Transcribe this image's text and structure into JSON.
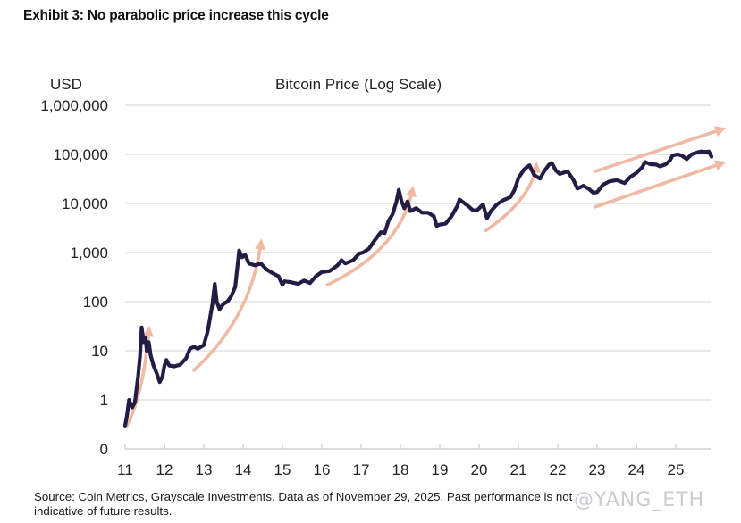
{
  "header": {
    "exhibit_title": "Exhibit 3: No parabolic price increase this cycle"
  },
  "footer": {
    "source_line1": "Source: Coin Metrics, Grayscale Investments. Data as of November 29, 2025. Past performance is not",
    "source_line2": "indicative of future results.",
    "watermark": "@YANG_ETH"
  },
  "colors": {
    "price_line": "#231d45",
    "arrow": "#efb9a3",
    "gridline": "#e2e2e2"
  },
  "chart_data": {
    "type": "line",
    "title": "Bitcoin Price (Log Scale)",
    "ylabel": "USD",
    "xlabel": "",
    "yscale": "log",
    "ylim": [
      0.1,
      1000000
    ],
    "xlim": [
      2011,
      2026.2
    ],
    "grid": true,
    "y_ticks": [
      {
        "value": 1000000,
        "label": "1,000,000"
      },
      {
        "value": 100000,
        "label": "100,000"
      },
      {
        "value": 10000,
        "label": "10,000"
      },
      {
        "value": 1000,
        "label": "1,000"
      },
      {
        "value": 100,
        "label": "100"
      },
      {
        "value": 10,
        "label": "10"
      },
      {
        "value": 1,
        "label": "1"
      },
      {
        "value": 0.1,
        "label": "0"
      }
    ],
    "x_ticks": [
      {
        "value": 2011,
        "label": "11"
      },
      {
        "value": 2012,
        "label": "12"
      },
      {
        "value": 2013,
        "label": "13"
      },
      {
        "value": 2014,
        "label": "14"
      },
      {
        "value": 2015,
        "label": "15"
      },
      {
        "value": 2016,
        "label": "16"
      },
      {
        "value": 2017,
        "label": "17"
      },
      {
        "value": 2018,
        "label": "18"
      },
      {
        "value": 2019,
        "label": "19"
      },
      {
        "value": 2020,
        "label": "20"
      },
      {
        "value": 2021,
        "label": "21"
      },
      {
        "value": 2022,
        "label": "22"
      },
      {
        "value": 2023,
        "label": "23"
      },
      {
        "value": 2024,
        "label": "24"
      },
      {
        "value": 2025,
        "label": "25"
      }
    ],
    "series": [
      {
        "name": "Bitcoin Price (USD)",
        "points": [
          [
            2011.0,
            0.3
          ],
          [
            2011.05,
            0.5
          ],
          [
            2011.1,
            1.0
          ],
          [
            2011.18,
            0.7
          ],
          [
            2011.25,
            0.9
          ],
          [
            2011.33,
            3.0
          ],
          [
            2011.38,
            8
          ],
          [
            2011.42,
            30
          ],
          [
            2011.47,
            15
          ],
          [
            2011.52,
            18
          ],
          [
            2011.55,
            10
          ],
          [
            2011.6,
            15
          ],
          [
            2011.65,
            8
          ],
          [
            2011.72,
            5
          ],
          [
            2011.8,
            3.5
          ],
          [
            2011.88,
            2.3
          ],
          [
            2011.95,
            3.0
          ],
          [
            2012.0,
            5.0
          ],
          [
            2012.05,
            6.5
          ],
          [
            2012.12,
            5.0
          ],
          [
            2012.25,
            4.8
          ],
          [
            2012.4,
            5.2
          ],
          [
            2012.55,
            7.0
          ],
          [
            2012.65,
            11
          ],
          [
            2012.75,
            12
          ],
          [
            2012.85,
            11
          ],
          [
            2013.0,
            13
          ],
          [
            2013.1,
            25
          ],
          [
            2013.22,
            90
          ],
          [
            2013.28,
            230
          ],
          [
            2013.33,
            100
          ],
          [
            2013.4,
            70
          ],
          [
            2013.5,
            90
          ],
          [
            2013.6,
            100
          ],
          [
            2013.7,
            130
          ],
          [
            2013.8,
            200
          ],
          [
            2013.9,
            1100
          ],
          [
            2013.97,
            800
          ],
          [
            2014.05,
            900
          ],
          [
            2014.15,
            600
          ],
          [
            2014.3,
            550
          ],
          [
            2014.45,
            600
          ],
          [
            2014.6,
            450
          ],
          [
            2014.75,
            380
          ],
          [
            2014.9,
            330
          ],
          [
            2015.0,
            220
          ],
          [
            2015.05,
            260
          ],
          [
            2015.2,
            250
          ],
          [
            2015.4,
            230
          ],
          [
            2015.55,
            270
          ],
          [
            2015.7,
            240
          ],
          [
            2015.85,
            330
          ],
          [
            2016.0,
            400
          ],
          [
            2016.2,
            420
          ],
          [
            2016.4,
            550
          ],
          [
            2016.5,
            700
          ],
          [
            2016.6,
            600
          ],
          [
            2016.8,
            700
          ],
          [
            2016.95,
            950
          ],
          [
            2017.05,
            1000
          ],
          [
            2017.2,
            1200
          ],
          [
            2017.35,
            1800
          ],
          [
            2017.5,
            2600
          ],
          [
            2017.6,
            2500
          ],
          [
            2017.7,
            4500
          ],
          [
            2017.8,
            6000
          ],
          [
            2017.9,
            11000
          ],
          [
            2017.96,
            19000
          ],
          [
            2018.03,
            11000
          ],
          [
            2018.1,
            8000
          ],
          [
            2018.18,
            11000
          ],
          [
            2018.25,
            7000
          ],
          [
            2018.4,
            8000
          ],
          [
            2018.55,
            6500
          ],
          [
            2018.7,
            6500
          ],
          [
            2018.85,
            5500
          ],
          [
            2018.92,
            3500
          ],
          [
            2019.0,
            3700
          ],
          [
            2019.15,
            3900
          ],
          [
            2019.3,
            5500
          ],
          [
            2019.45,
            9000
          ],
          [
            2019.5,
            12000
          ],
          [
            2019.6,
            10500
          ],
          [
            2019.75,
            8500
          ],
          [
            2019.85,
            7200
          ],
          [
            2019.95,
            7300
          ],
          [
            2020.1,
            9500
          ],
          [
            2020.2,
            5000
          ],
          [
            2020.3,
            7000
          ],
          [
            2020.45,
            9500
          ],
          [
            2020.6,
            11500
          ],
          [
            2020.8,
            13500
          ],
          [
            2020.9,
            19000
          ],
          [
            2021.0,
            33000
          ],
          [
            2021.15,
            50000
          ],
          [
            2021.28,
            60000
          ],
          [
            2021.4,
            38000
          ],
          [
            2021.55,
            32000
          ],
          [
            2021.65,
            45000
          ],
          [
            2021.78,
            62000
          ],
          [
            2021.85,
            67000
          ],
          [
            2021.95,
            47000
          ],
          [
            2022.05,
            40000
          ],
          [
            2022.25,
            45000
          ],
          [
            2022.4,
            30000
          ],
          [
            2022.5,
            20000
          ],
          [
            2022.65,
            23000
          ],
          [
            2022.8,
            19500
          ],
          [
            2022.9,
            16500
          ],
          [
            2023.0,
            17000
          ],
          [
            2023.15,
            24000
          ],
          [
            2023.3,
            28000
          ],
          [
            2023.5,
            30000
          ],
          [
            2023.7,
            26000
          ],
          [
            2023.85,
            35000
          ],
          [
            2024.0,
            42000
          ],
          [
            2024.15,
            55000
          ],
          [
            2024.22,
            70000
          ],
          [
            2024.35,
            63000
          ],
          [
            2024.5,
            62000
          ],
          [
            2024.6,
            57000
          ],
          [
            2024.75,
            63000
          ],
          [
            2024.85,
            75000
          ],
          [
            2024.92,
            95000
          ],
          [
            2025.05,
            100000
          ],
          [
            2025.15,
            95000
          ],
          [
            2025.28,
            80000
          ],
          [
            2025.4,
            100000
          ],
          [
            2025.55,
            110000
          ],
          [
            2025.65,
            115000
          ],
          [
            2025.78,
            112000
          ],
          [
            2025.84,
            115000
          ],
          [
            2025.91,
            90000
          ]
        ]
      }
    ],
    "annotations": [
      {
        "type": "arrow",
        "label": "cycle-2011",
        "from": [
          2011.05,
          0.3
        ],
        "via": [
          2011.4,
          2
        ],
        "to": [
          2011.6,
          25
        ]
      },
      {
        "type": "arrow",
        "label": "cycle-2013",
        "from": [
          2012.75,
          4
        ],
        "via": [
          2013.9,
          60
        ],
        "to": [
          2014.45,
          1500
        ]
      },
      {
        "type": "arrow",
        "label": "cycle-2017",
        "from": [
          2016.15,
          220
        ],
        "via": [
          2017.6,
          1500
        ],
        "to": [
          2018.3,
          18000
        ]
      },
      {
        "type": "arrow",
        "label": "cycle-2021",
        "from": [
          2020.17,
          2800
        ],
        "via": [
          2021.05,
          12000
        ],
        "to": [
          2021.45,
          55000
        ]
      },
      {
        "type": "arrow",
        "label": "channel-upper",
        "from": [
          2022.95,
          45000
        ],
        "to": [
          2026.15,
          320000
        ]
      },
      {
        "type": "arrow",
        "label": "channel-lower",
        "from": [
          2022.95,
          8500
        ],
        "to": [
          2026.15,
          65000
        ]
      }
    ]
  }
}
